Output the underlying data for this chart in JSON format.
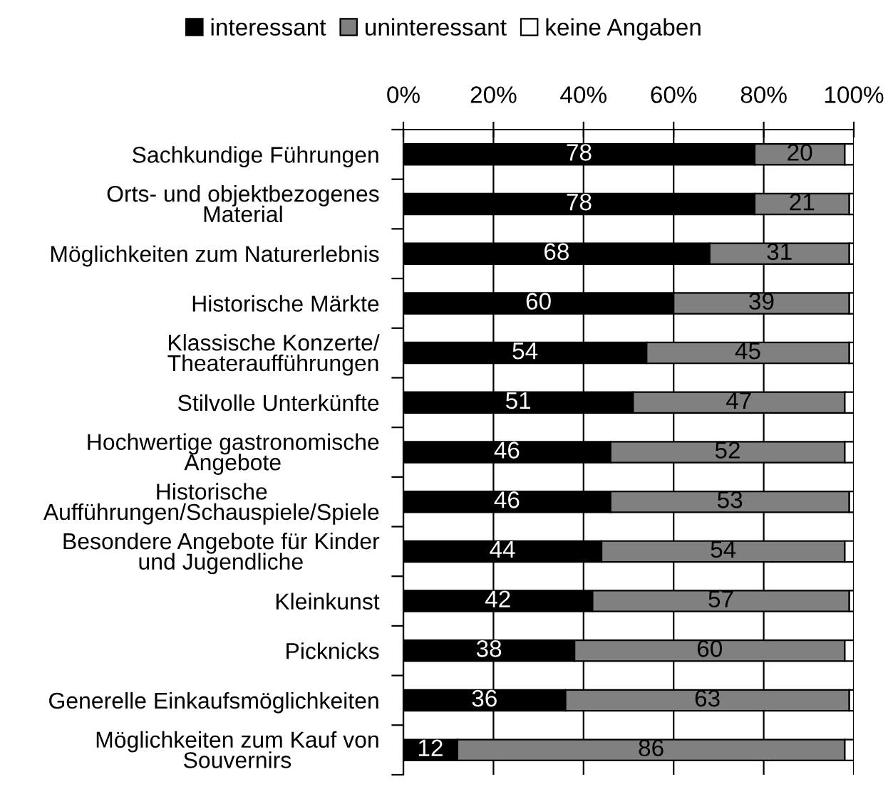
{
  "chart_data": {
    "type": "bar",
    "orientation": "horizontal",
    "stacked": true,
    "categories": [
      "Sachkundige Führungen",
      "Orts- und objektbezogenes\nMaterial",
      "Möglichkeiten zum Naturerlebnis",
      "Historische Märkte",
      "Klassische Konzerte/\nTheateraufführungen",
      "Stilvolle Unterkünfte",
      "Hochwertige gastronomische\nAngebote",
      "Historische\nAufführungen/Schauspiele/Spiele",
      "Besondere Angebote für Kinder\nund Jugendliche",
      "Kleinkunst",
      "Picknicks",
      "Generelle Einkaufsmöglichkeiten",
      "Möglichkeiten zum Kauf von\nSouvernirs"
    ],
    "series": [
      {
        "name": "interessant",
        "color": "#000000",
        "values": [
          78,
          78,
          68,
          60,
          54,
          51,
          46,
          46,
          44,
          42,
          38,
          36,
          12
        ],
        "value_labels": [
          "78",
          "78",
          "68",
          "60",
          "54",
          "51",
          "46",
          "46",
          "44",
          "42",
          "38",
          "36",
          "12"
        ]
      },
      {
        "name": "uninteressant",
        "color": "#808080",
        "values": [
          20,
          21,
          31,
          39,
          45,
          47,
          52,
          53,
          54,
          57,
          60,
          63,
          86
        ],
        "value_labels": [
          "20",
          "21",
          "31",
          "39",
          "45",
          "47",
          "52",
          "53",
          "54",
          "57",
          "60",
          "63",
          "86"
        ]
      },
      {
        "name": "keine Angaben",
        "color": "#ffffff",
        "values": [
          2,
          1,
          1,
          1,
          1,
          2,
          2,
          1,
          2,
          1,
          2,
          1,
          2
        ]
      }
    ],
    "xlim": [
      0,
      100
    ],
    "xticks": [
      {
        "value": 0,
        "label": "0%"
      },
      {
        "value": 20,
        "label": "20%"
      },
      {
        "value": 40,
        "label": "40%"
      },
      {
        "value": 60,
        "label": "60%"
      },
      {
        "value": 80,
        "label": "80%"
      },
      {
        "value": 100,
        "label": "100%"
      }
    ],
    "grid": "x",
    "legend": "top"
  }
}
